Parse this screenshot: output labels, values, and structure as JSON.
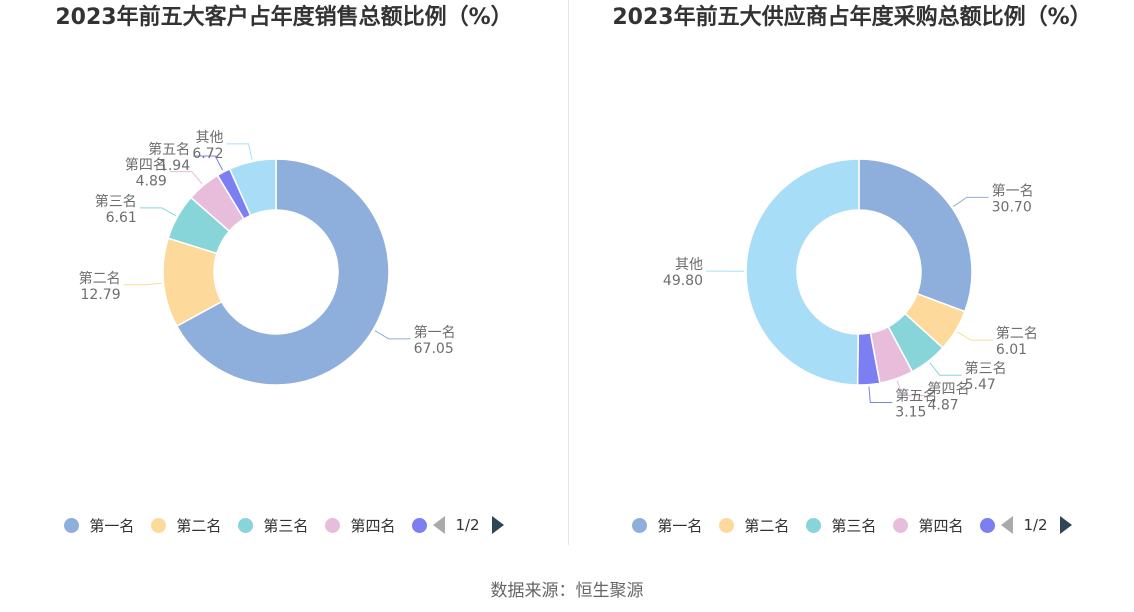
{
  "chart_data": [
    {
      "type": "pie",
      "variant": "donut",
      "title": "2023年前五大客户占年度销售总额比例（%）",
      "series": [
        {
          "name": "第一名",
          "value": 67.05,
          "value_label": "67.05",
          "color": "#8eaedb"
        },
        {
          "name": "第二名",
          "value": 12.79,
          "value_label": "12.79",
          "color": "#fdd99b"
        },
        {
          "name": "第三名",
          "value": 6.61,
          "value_label": "6.61",
          "color": "#88d5d9"
        },
        {
          "name": "第四名",
          "value": 4.89,
          "value_label": "4.89",
          "color": "#e8bddc"
        },
        {
          "name": "第五名",
          "value": 1.94,
          "value_label": "1.94",
          "color": "#7b7ff2"
        },
        {
          "name": "其他",
          "value": 6.72,
          "value_label": "6.72",
          "color": "#a8ddf7"
        }
      ],
      "legend": {
        "position": "bottom",
        "visible_items": [
          "第一名",
          "第二名",
          "第三名",
          "第四名"
        ],
        "page": "1/2"
      }
    },
    {
      "type": "pie",
      "variant": "donut",
      "title": "2023年前五大供应商占年度采购总额比例（%）",
      "series": [
        {
          "name": "第一名",
          "value": 30.7,
          "value_label": "30.70",
          "color": "#8eaedb"
        },
        {
          "name": "第二名",
          "value": 6.01,
          "value_label": "6.01",
          "color": "#fdd99b"
        },
        {
          "name": "第三名",
          "value": 5.47,
          "value_label": "5.47",
          "color": "#88d5d9"
        },
        {
          "name": "第四名",
          "value": 4.87,
          "value_label": "4.87",
          "color": "#e8bddc"
        },
        {
          "name": "第五名",
          "value": 3.15,
          "value_label": "3.15",
          "color": "#7b7ff2"
        },
        {
          "name": "其他",
          "value": 49.8,
          "value_label": "49.80",
          "color": "#a8ddf7"
        }
      ],
      "legend": {
        "position": "bottom",
        "visible_items": [
          "第一名",
          "第二名",
          "第三名",
          "第四名"
        ],
        "page": "1/2"
      }
    }
  ],
  "source": "数据来源：恒生聚源",
  "legend_icons": {
    "prev": "triangle-left-icon",
    "next": "triangle-right-icon"
  }
}
